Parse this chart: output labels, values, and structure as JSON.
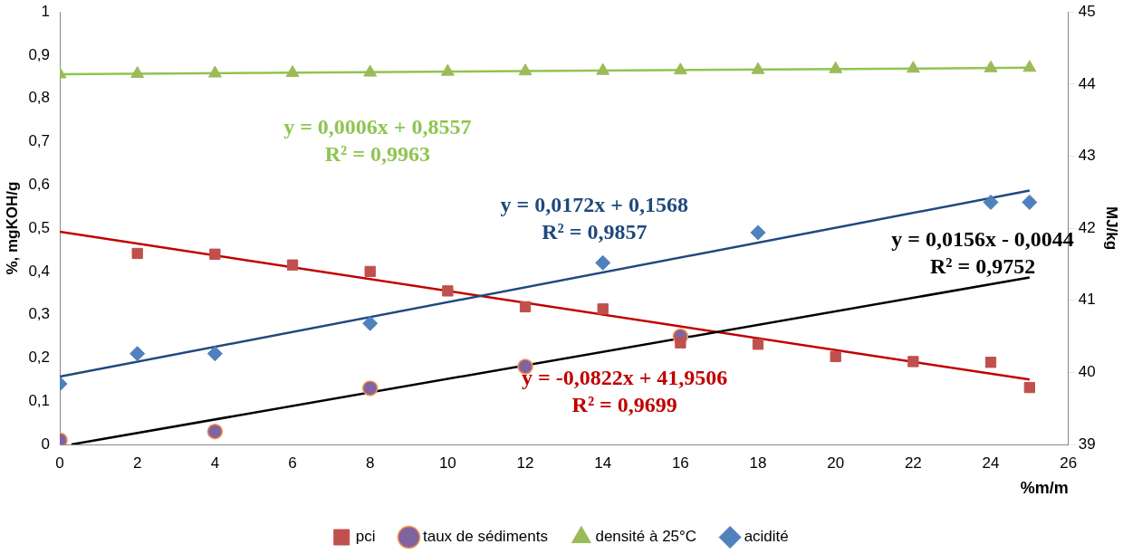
{
  "chart_data": {
    "type": "scatter",
    "xlabel": "%m/m",
    "ylabel": "%, mgKOH/g",
    "y2label": "MJ/kg",
    "xlim": [
      0,
      26
    ],
    "xticks": [
      0,
      2,
      4,
      6,
      8,
      10,
      12,
      14,
      16,
      18,
      20,
      22,
      24,
      26
    ],
    "ylim": [
      0,
      1
    ],
    "yticks": [
      0,
      {
        "value": 0.1,
        "label": "0,1"
      },
      {
        "value": 0.2,
        "label": "0,2"
      },
      {
        "value": 0.3,
        "label": "0,3"
      },
      {
        "value": 0.4,
        "label": "0,4"
      },
      {
        "value": 0.5,
        "label": "0,5"
      },
      {
        "value": 0.6,
        "label": "0,6"
      },
      {
        "value": 0.7,
        "label": "0,7"
      },
      {
        "value": 0.8,
        "label": "0,8"
      },
      {
        "value": 0.9,
        "label": "0,9"
      },
      1
    ],
    "y2lim": [
      39,
      45
    ],
    "y2ticks": [
      39,
      40,
      41,
      42,
      43,
      44,
      45
    ],
    "legend": "bottom",
    "series": [
      {
        "name": "acidité",
        "marker": "diamond",
        "color": "#4f81bd",
        "x": [
          0,
          2,
          4,
          8,
          14,
          18,
          24,
          25
        ],
        "values": [
          0.14,
          0.21,
          0.21,
          0.28,
          0.42,
          0.49,
          0.56,
          0.56
        ]
      },
      {
        "name": "densité à 25°C",
        "marker": "triangle",
        "color": "#9bbb59",
        "x": [
          0,
          2,
          4,
          6,
          8,
          10,
          12,
          14,
          16,
          18,
          20,
          22,
          24,
          25
        ],
        "values": [
          0.856,
          0.857,
          0.858,
          0.859,
          0.86,
          0.862,
          0.863,
          0.864,
          0.865,
          0.866,
          0.868,
          0.869,
          0.87,
          0.871
        ]
      },
      {
        "name": "taux de sédiments",
        "marker": "circle",
        "color": "#8064a2",
        "x": [
          0,
          4,
          8,
          12,
          16
        ],
        "values": [
          0.01,
          0.03,
          0.13,
          0.18,
          0.25
        ]
      },
      {
        "name": "pci",
        "marker": "square",
        "color": "#c0504d",
        "axis": "y2",
        "x": [
          2,
          4,
          6,
          8,
          10,
          12,
          14,
          16,
          18,
          20,
          22,
          24,
          25
        ],
        "values": [
          41.65,
          41.64,
          41.49,
          41.4,
          41.13,
          40.91,
          40.88,
          40.41,
          40.39,
          40.22,
          40.15,
          40.14,
          39.79
        ]
      },
      {
        "type": "line",
        "marker": "none",
        "color": "#8fc550",
        "x": [
          0,
          25
        ],
        "values": [
          0.856,
          0.871
        ]
      },
      {
        "type": "line",
        "marker": "none",
        "color": "#1f497d",
        "x": [
          0,
          25
        ],
        "values": [
          0.157,
          0.587
        ]
      },
      {
        "type": "line",
        "marker": "none",
        "color": "#000000",
        "x": [
          0.3,
          25
        ],
        "values": [
          0,
          0.386
        ]
      },
      {
        "type": "line",
        "marker": "none",
        "color": "#c00000",
        "axis": "y2",
        "x": [
          0,
          25
        ],
        "values": [
          41.95,
          39.9
        ]
      }
    ],
    "annotations": [
      "y = 0,0006x + 0,8557\nR² = 0,9963",
      "y = 0,0172x + 0,1568\nR² = 0,9857",
      "y = 0,0156x - 0,0044\nR² = 0,9752",
      "y = -0,0822x + 41,9506\nR² = 0,9699"
    ]
  }
}
